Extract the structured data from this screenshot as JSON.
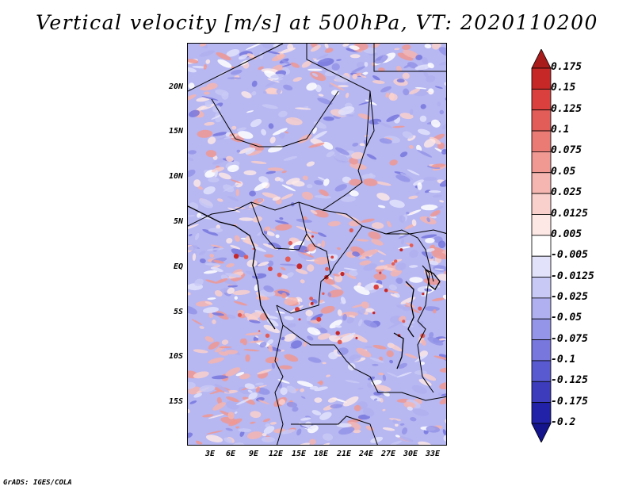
{
  "title": "Vertical velocity [m/s] at 500hPa, VT: 2020110200",
  "map": {
    "lat_labels": [
      "20N",
      "15N",
      "10N",
      "5N",
      "EQ",
      "5S",
      "10S",
      "15S"
    ],
    "lon_labels": [
      "3E",
      "6E",
      "9E",
      "12E",
      "15E",
      "18E",
      "21E",
      "24E",
      "27E",
      "30E",
      "33E"
    ]
  },
  "colorbar": {
    "labels": [
      "0.175",
      "0.15",
      "0.125",
      "0.1",
      "0.075",
      "0.05",
      "0.025",
      "0.0125",
      "0.005",
      "-0.005",
      "-0.0125",
      "-0.025",
      "-0.05",
      "-0.075",
      "-0.1",
      "-0.125",
      "-0.175",
      "-0.2"
    ],
    "colors": [
      "#a81c1c",
      "#c62828",
      "#d9403e",
      "#e35d58",
      "#ea7a74",
      "#f09892",
      "#f5b5b0",
      "#f9d0cc",
      "#fde8e6",
      "#ffffff",
      "#e2e2fb",
      "#c9c9f6",
      "#b0b0f0",
      "#9494e8",
      "#7777de",
      "#5a5ad0",
      "#3c3cbd",
      "#2222a8",
      "#14148c"
    ]
  },
  "credit": "GrADS: IGES/COLA"
}
